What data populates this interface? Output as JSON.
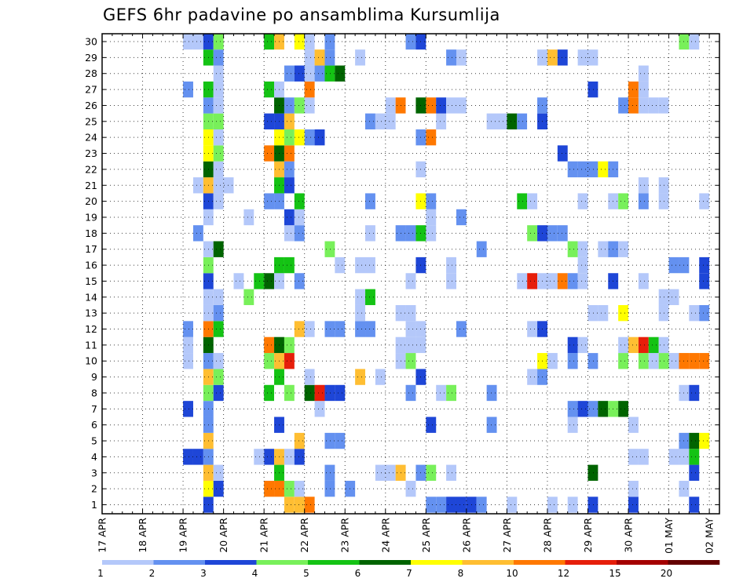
{
  "chart_data": {
    "type": "heatmap",
    "title": "GEFS 6hr padavine po ansamblima Kursumlija",
    "y_ticks": [
      "1",
      "2",
      "3",
      "4",
      "5",
      "6",
      "7",
      "8",
      "9",
      "10",
      "11",
      "12",
      "13",
      "14",
      "15",
      "16",
      "17",
      "18",
      "19",
      "20",
      "21",
      "22",
      "23",
      "24",
      "25",
      "26",
      "27",
      "28",
      "29",
      "30"
    ],
    "x_ticks": [
      "17 APR",
      "18 APR",
      "19 APR",
      "20 APR",
      "21 APR",
      "22 APR",
      "23 APR",
      "24 APR",
      "25 APR",
      "26 APR",
      "27 APR",
      "28 APR",
      "29 APR",
      "30 APR",
      "01 MAY",
      "02 MAY"
    ],
    "ylim": [
      1,
      30
    ],
    "grid": true,
    "colorbar": {
      "labels": [
        "1",
        "2",
        "3",
        "4",
        "5",
        "6",
        "7",
        "8",
        "10",
        "12",
        "15",
        "20"
      ],
      "colors": [
        "#b4c8fa",
        "#6491f0",
        "#1e46d7",
        "#78f05a",
        "#14c314",
        "#006400",
        "#ffff00",
        "#ffbe32",
        "#ff7800",
        "#e61e0a",
        "#a50000",
        "#640000"
      ]
    },
    "legend_placement": "bottom",
    "series": [
      {
        "member": 1,
        "values": {
          "19.5": "3",
          "21.5": "8",
          "21.75": "8",
          "22": "10",
          "25": "2",
          "25.25": "2",
          "25.5": "3",
          "25.75": "3",
          "26": "3",
          "26.25": "2",
          "27": "1",
          "28": "1",
          "28.5": "1",
          "29": "3",
          "30": "3",
          "31.5": "3"
        }
      },
      {
        "member": 2,
        "values": {
          "19.5": "7",
          "19.75": "3",
          "21": "10",
          "21.25": "10",
          "21.5": "4",
          "21.75": "1",
          "22.5": "2",
          "23": "2",
          "24.5": "1",
          "30": "1",
          "31.25": "1"
        }
      },
      {
        "member": 3,
        "values": {
          "19.5": "8",
          "19.75": "1",
          "21.25": "5",
          "22.5": "2",
          "23.75": "1",
          "24": "1",
          "24.25": "8",
          "24.75": "2",
          "25": "4",
          "25.5": "1",
          "29": "6",
          "31.5": "3"
        }
      },
      {
        "member": 4,
        "values": {
          "19": "3",
          "19.25": "3",
          "19.5": "2",
          "20.75": "1",
          "21": "3",
          "21.25": "8",
          "21.5": "1",
          "21.75": "3",
          "30": "1",
          "30.25": "1",
          "31": "1",
          "31.25": "1",
          "31.5": "5"
        }
      },
      {
        "member": 5,
        "values": {
          "19.5": "8",
          "21.25": "11",
          "21.75": "8",
          "22.5": "2",
          "22.75": "2",
          "31.25": "2",
          "31.5": "6",
          "31.75": "7"
        }
      },
      {
        "member": 6,
        "values": {
          "19.5": "2",
          "21.25": "3",
          "25": "3",
          "26.5": "2",
          "28.5": "1",
          "30": "1"
        }
      },
      {
        "member": 7,
        "values": {
          "19": "3",
          "19.5": "2",
          "21.5": "11",
          "22.25": "1",
          "28.5": "2",
          "28.75": "3",
          "29": "2",
          "29.25": "6",
          "29.5": "4",
          "29.75": "6"
        }
      },
      {
        "member": 8,
        "values": {
          "19.5": "4",
          "19.75": "3",
          "21": "5",
          "21.25": "11",
          "21.5": "4",
          "22": "6",
          "22.25": "12",
          "22.5": "3",
          "22.75": "3",
          "24.5": "2",
          "25.25": "1",
          "25.5": "4",
          "26.5": "2",
          "31.25": "1",
          "31.5": "3"
        }
      },
      {
        "member": 9,
        "values": {
          "19.5": "8",
          "19.75": "4",
          "21.25": "5",
          "22": "1",
          "23.25": "8",
          "23.75": "1",
          "24.75": "3",
          "27.5": "1",
          "27.75": "2"
        }
      },
      {
        "member": 10,
        "values": {
          "19": "1",
          "19.5": "2",
          "19.75": "1",
          "21": "4",
          "21.25": "8",
          "21.5": "12",
          "24.25": "1",
          "24.5": "4",
          "27.75": "7",
          "28": "1",
          "28.5": "2",
          "29": "2",
          "29.75": "4",
          "30.25": "4",
          "30.5": "1",
          "30.75": "4",
          "31": "1",
          "31.25": "10",
          "31.5": "10",
          "31.75": "10"
        }
      },
      {
        "member": 11,
        "values": {
          "19": "1",
          "19.5": "6",
          "21": "10",
          "21.25": "6",
          "21.5": "4",
          "24.25": "1",
          "24.5": "1",
          "24.75": "1",
          "28.5": "3",
          "28.75": "1",
          "29": "11",
          "29.75": "1",
          "30": "8",
          "30.25": "12",
          "30.5": "5",
          "30.75": "1"
        }
      },
      {
        "member": 12,
        "values": {
          "19": "2",
          "19.5": "10",
          "19.75": "5",
          "21.5": "11",
          "21.75": "8",
          "22": "1",
          "22.5": "2",
          "22.75": "2",
          "23.25": "2",
          "23.5": "2",
          "24.5": "1",
          "24.75": "1",
          "25.75": "2",
          "27.5": "1",
          "27.75": "3"
        }
      },
      {
        "member": 13,
        "values": {
          "19.5": "1",
          "19.75": "2",
          "23.25": "1",
          "24.25": "1",
          "24.5": "1",
          "29": "1",
          "29.25": "1",
          "29.75": "7",
          "30.75": "1",
          "31.5": "1",
          "31.75": "2"
        }
      },
      {
        "member": 14,
        "values": {
          "19.5": "1",
          "19.75": "1",
          "20.5": "4",
          "23.25": "1",
          "23.5": "5",
          "30.75": "1",
          "31": "1"
        }
      },
      {
        "member": 15,
        "values": {
          "19.5": "3",
          "20.25": "1",
          "20.75": "5",
          "21": "6",
          "21.25": "1",
          "21.75": "2",
          "24.5": "1",
          "25.5": "1",
          "27.25": "1",
          "27.5": "12",
          "27.75": "1",
          "28": "1",
          "28.25": "10",
          "28.5": "2",
          "28.75": "1",
          "29.5": "3",
          "30.25": "1",
          "31.75": "3"
        }
      },
      {
        "member": 16,
        "values": {
          "19.5": "4",
          "21.25": "5",
          "21.5": "5",
          "22.75": "1",
          "23.25": "1",
          "23.5": "1",
          "24.75": "3",
          "25.5": "1",
          "28.75": "1",
          "31": "2",
          "31.25": "2",
          "31.75": "3"
        }
      },
      {
        "member": 17,
        "values": {
          "19.5": "1",
          "19.75": "6",
          "22.5": "4",
          "26.25": "2",
          "28.5": "4",
          "28.75": "1",
          "29.25": "1",
          "29.5": "2",
          "29.75": "1"
        }
      },
      {
        "member": 18,
        "values": {
          "19.25": "2",
          "21.5": "1",
          "21.75": "2",
          "23.5": "1",
          "24.25": "2",
          "24.5": "2",
          "24.75": "5",
          "25": "1",
          "27.5": "4",
          "27.75": "3",
          "28": "2",
          "28.25": "2"
        }
      },
      {
        "member": 19,
        "values": {
          "19.5": "1",
          "20.5": "1",
          "21.5": "3",
          "21.75": "1",
          "25": "1",
          "25.75": "2"
        }
      },
      {
        "member": 20,
        "values": {
          "19.5": "3",
          "19.75": "1",
          "21": "2",
          "21.25": "2",
          "21.75": "5",
          "23.5": "2",
          "24.75": "7",
          "25": "2",
          "27.25": "5",
          "27.5": "1",
          "28.75": "1",
          "29.5": "1",
          "29.75": "4",
          "30.25": "2",
          "30.75": "1",
          "31.75": "1"
        }
      },
      {
        "member": 21,
        "values": {
          "19.25": "1",
          "19.5": "8",
          "19.75": "1",
          "20": "1",
          "21.25": "5",
          "21.5": "3",
          "30.25": "1",
          "30.75": "1"
        }
      },
      {
        "member": 22,
        "values": {
          "19.5": "6",
          "19.75": "1",
          "21.25": "8",
          "21.5": "2",
          "21.75": "11",
          "24.75": "1",
          "28.5": "2",
          "28.75": "2",
          "29": "2",
          "29.25": "7",
          "29.5": "2"
        }
      },
      {
        "member": 23,
        "values": {
          "19.5": "7",
          "19.75": "4",
          "21": "10",
          "21.25": "6",
          "21.5": "10",
          "28.25": "3"
        }
      },
      {
        "member": 24,
        "values": {
          "19.5": "7",
          "19.75": "1",
          "21.25": "7",
          "21.5": "4",
          "21.75": "7",
          "22": "2",
          "22.25": "3",
          "24.75": "2",
          "25": "10"
        }
      },
      {
        "member": 25,
        "values": {
          "19.5": "4",
          "19.75": "4",
          "21": "3",
          "21.25": "3",
          "21.5": "8",
          "23.5": "2",
          "23.75": "1",
          "24": "1",
          "25.25": "1",
          "26.5": "1",
          "26.75": "1",
          "27": "6",
          "27.25": "2",
          "27.5": "11",
          "27.75": "3"
        }
      },
      {
        "member": 26,
        "values": {
          "19.5": "2",
          "19.75": "1",
          "21.25": "6",
          "21.5": "2",
          "21.75": "4",
          "22": "1",
          "24": "1",
          "24.25": "10",
          "24.5": "11",
          "24.75": "6",
          "25": "10",
          "25.25": "3",
          "25.5": "1",
          "25.75": "1",
          "27.75": "2",
          "29.75": "2",
          "30": "10",
          "30.25": "1",
          "30.5": "1",
          "30.75": "1"
        }
      },
      {
        "member": 27,
        "values": {
          "19": "2",
          "19.5": "5",
          "19.75": "1",
          "21": "5",
          "21.25": "1",
          "22": "10",
          "29": "3",
          "30": "10",
          "30.25": "1"
        }
      },
      {
        "member": 28,
        "values": {
          "19.75": "1",
          "21.5": "2",
          "21.75": "3",
          "22": "1",
          "22.25": "2",
          "22.5": "5",
          "22.75": "6",
          "30.25": "1"
        }
      },
      {
        "member": 29,
        "values": {
          "19.5": "5",
          "19.75": "2",
          "22": "1",
          "22.25": "8",
          "22.5": "2",
          "23.25": "1",
          "25.5": "2",
          "25.75": "1",
          "27.75": "1",
          "28": "8",
          "28.25": "3",
          "28.75": "1",
          "29": "1"
        }
      },
      {
        "member": 30,
        "values": {
          "19": "1",
          "19.25": "1",
          "19.5": "3",
          "19.75": "4",
          "21": "5",
          "21.25": "8",
          "21.75": "7",
          "22": "1",
          "22.5": "2",
          "24.5": "2",
          "24.75": "3",
          "31.25": "4",
          "31.5": "1"
        }
      }
    ]
  }
}
